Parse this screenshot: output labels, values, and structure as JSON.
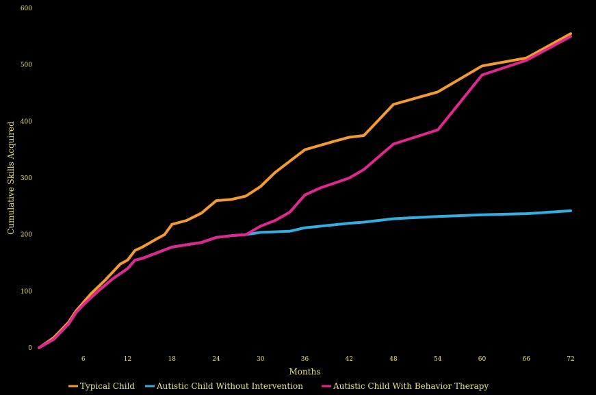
{
  "chart_data": {
    "type": "line",
    "title": "",
    "xlabel": "Months",
    "ylabel": "Cumulative Skills Acquired",
    "xlim": [
      0,
      72
    ],
    "ylim": [
      0,
      600
    ],
    "x_ticks": [
      6,
      12,
      18,
      24,
      30,
      36,
      42,
      48,
      54,
      60,
      66,
      72
    ],
    "y_ticks": [
      0,
      100,
      200,
      300,
      400,
      500,
      600
    ],
    "grid": false,
    "legend_position": "bottom",
    "series": [
      {
        "name": "Typical Child",
        "color": "#f39a30",
        "points": [
          [
            0,
            0
          ],
          [
            2,
            18
          ],
          [
            4,
            45
          ],
          [
            5,
            65
          ],
          [
            6,
            80
          ],
          [
            7,
            95
          ],
          [
            9,
            120
          ],
          [
            11,
            148
          ],
          [
            12,
            155
          ],
          [
            13,
            172
          ],
          [
            14,
            178
          ],
          [
            16,
            193
          ],
          [
            17,
            200
          ],
          [
            18,
            218
          ],
          [
            20,
            225
          ],
          [
            22,
            238
          ],
          [
            24,
            260
          ],
          [
            26,
            262
          ],
          [
            28,
            268
          ],
          [
            30,
            285
          ],
          [
            32,
            310
          ],
          [
            36,
            350
          ],
          [
            40,
            365
          ],
          [
            42,
            372
          ],
          [
            44,
            375
          ],
          [
            48,
            430
          ],
          [
            54,
            452
          ],
          [
            60,
            498
          ],
          [
            66,
            512
          ],
          [
            72,
            555
          ]
        ]
      },
      {
        "name": "Autistic Child Without Intervention",
        "color": "#33aee0",
        "points": [
          [
            0,
            0
          ],
          [
            2,
            15
          ],
          [
            4,
            42
          ],
          [
            5,
            62
          ],
          [
            6,
            76
          ],
          [
            8,
            100
          ],
          [
            10,
            122
          ],
          [
            12,
            140
          ],
          [
            13,
            155
          ],
          [
            14,
            158
          ],
          [
            16,
            168
          ],
          [
            18,
            178
          ],
          [
            20,
            182
          ],
          [
            22,
            186
          ],
          [
            24,
            195
          ],
          [
            26,
            198
          ],
          [
            28,
            200
          ],
          [
            30,
            204
          ],
          [
            34,
            206
          ],
          [
            36,
            212
          ],
          [
            42,
            220
          ],
          [
            44,
            222
          ],
          [
            48,
            228
          ],
          [
            54,
            232
          ],
          [
            60,
            235
          ],
          [
            66,
            237
          ],
          [
            72,
            242
          ]
        ]
      },
      {
        "name": "Autistic Child With Behavior Therapy",
        "color": "#e0278f",
        "points": [
          [
            0,
            0
          ],
          [
            2,
            15
          ],
          [
            4,
            42
          ],
          [
            5,
            62
          ],
          [
            6,
            76
          ],
          [
            8,
            100
          ],
          [
            10,
            122
          ],
          [
            12,
            140
          ],
          [
            13,
            155
          ],
          [
            14,
            158
          ],
          [
            16,
            168
          ],
          [
            18,
            178
          ],
          [
            20,
            182
          ],
          [
            22,
            186
          ],
          [
            24,
            195
          ],
          [
            26,
            198
          ],
          [
            28,
            200
          ],
          [
            30,
            215
          ],
          [
            32,
            225
          ],
          [
            34,
            240
          ],
          [
            36,
            270
          ],
          [
            38,
            282
          ],
          [
            42,
            300
          ],
          [
            44,
            315
          ],
          [
            48,
            360
          ],
          [
            54,
            385
          ],
          [
            60,
            482
          ],
          [
            66,
            508
          ],
          [
            72,
            550
          ]
        ]
      }
    ]
  }
}
